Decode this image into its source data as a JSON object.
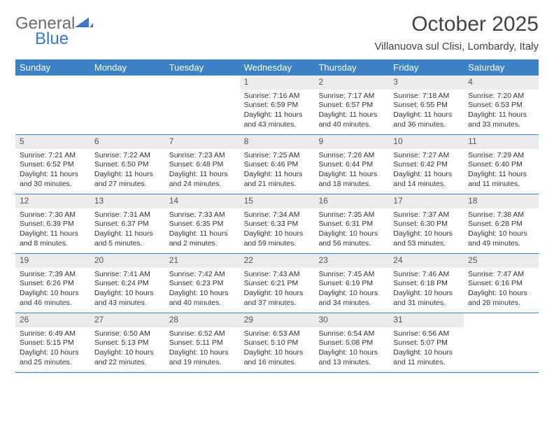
{
  "logo": {
    "text_gray": "General",
    "text_blue": "Blue"
  },
  "title": "October 2025",
  "location": "Villanuova sul Clisi, Lombardy, Italy",
  "colors": {
    "header_bg": "#3b82c4",
    "header_text": "#ffffff",
    "daynum_bg": "#ececec",
    "border": "#3b82c4",
    "logo_gray": "#6b6b6b",
    "logo_blue": "#3b7bbf",
    "title_color": "#424242"
  },
  "day_names": [
    "Sunday",
    "Monday",
    "Tuesday",
    "Wednesday",
    "Thursday",
    "Friday",
    "Saturday"
  ],
  "weeks": [
    [
      null,
      null,
      null,
      {
        "n": "1",
        "sr": "7:16 AM",
        "ss": "6:59 PM",
        "dl": "11 hours and 43 minutes."
      },
      {
        "n": "2",
        "sr": "7:17 AM",
        "ss": "6:57 PM",
        "dl": "11 hours and 40 minutes."
      },
      {
        "n": "3",
        "sr": "7:18 AM",
        "ss": "6:55 PM",
        "dl": "11 hours and 36 minutes."
      },
      {
        "n": "4",
        "sr": "7:20 AM",
        "ss": "6:53 PM",
        "dl": "11 hours and 33 minutes."
      }
    ],
    [
      {
        "n": "5",
        "sr": "7:21 AM",
        "ss": "6:52 PM",
        "dl": "11 hours and 30 minutes."
      },
      {
        "n": "6",
        "sr": "7:22 AM",
        "ss": "6:50 PM",
        "dl": "11 hours and 27 minutes."
      },
      {
        "n": "7",
        "sr": "7:23 AM",
        "ss": "6:48 PM",
        "dl": "11 hours and 24 minutes."
      },
      {
        "n": "8",
        "sr": "7:25 AM",
        "ss": "6:46 PM",
        "dl": "11 hours and 21 minutes."
      },
      {
        "n": "9",
        "sr": "7:26 AM",
        "ss": "6:44 PM",
        "dl": "11 hours and 18 minutes."
      },
      {
        "n": "10",
        "sr": "7:27 AM",
        "ss": "6:42 PM",
        "dl": "11 hours and 14 minutes."
      },
      {
        "n": "11",
        "sr": "7:29 AM",
        "ss": "6:40 PM",
        "dl": "11 hours and 11 minutes."
      }
    ],
    [
      {
        "n": "12",
        "sr": "7:30 AM",
        "ss": "6:39 PM",
        "dl": "11 hours and 8 minutes."
      },
      {
        "n": "13",
        "sr": "7:31 AM",
        "ss": "6:37 PM",
        "dl": "11 hours and 5 minutes."
      },
      {
        "n": "14",
        "sr": "7:33 AM",
        "ss": "6:35 PM",
        "dl": "11 hours and 2 minutes."
      },
      {
        "n": "15",
        "sr": "7:34 AM",
        "ss": "6:33 PM",
        "dl": "10 hours and 59 minutes."
      },
      {
        "n": "16",
        "sr": "7:35 AM",
        "ss": "6:31 PM",
        "dl": "10 hours and 56 minutes."
      },
      {
        "n": "17",
        "sr": "7:37 AM",
        "ss": "6:30 PM",
        "dl": "10 hours and 53 minutes."
      },
      {
        "n": "18",
        "sr": "7:38 AM",
        "ss": "6:28 PM",
        "dl": "10 hours and 49 minutes."
      }
    ],
    [
      {
        "n": "19",
        "sr": "7:39 AM",
        "ss": "6:26 PM",
        "dl": "10 hours and 46 minutes."
      },
      {
        "n": "20",
        "sr": "7:41 AM",
        "ss": "6:24 PM",
        "dl": "10 hours and 43 minutes."
      },
      {
        "n": "21",
        "sr": "7:42 AM",
        "ss": "6:23 PM",
        "dl": "10 hours and 40 minutes."
      },
      {
        "n": "22",
        "sr": "7:43 AM",
        "ss": "6:21 PM",
        "dl": "10 hours and 37 minutes."
      },
      {
        "n": "23",
        "sr": "7:45 AM",
        "ss": "6:19 PM",
        "dl": "10 hours and 34 minutes."
      },
      {
        "n": "24",
        "sr": "7:46 AM",
        "ss": "6:18 PM",
        "dl": "10 hours and 31 minutes."
      },
      {
        "n": "25",
        "sr": "7:47 AM",
        "ss": "6:16 PM",
        "dl": "10 hours and 28 minutes."
      }
    ],
    [
      {
        "n": "26",
        "sr": "6:49 AM",
        "ss": "5:15 PM",
        "dl": "10 hours and 25 minutes."
      },
      {
        "n": "27",
        "sr": "6:50 AM",
        "ss": "5:13 PM",
        "dl": "10 hours and 22 minutes."
      },
      {
        "n": "28",
        "sr": "6:52 AM",
        "ss": "5:11 PM",
        "dl": "10 hours and 19 minutes."
      },
      {
        "n": "29",
        "sr": "6:53 AM",
        "ss": "5:10 PM",
        "dl": "10 hours and 16 minutes."
      },
      {
        "n": "30",
        "sr": "6:54 AM",
        "ss": "5:08 PM",
        "dl": "10 hours and 13 minutes."
      },
      {
        "n": "31",
        "sr": "6:56 AM",
        "ss": "5:07 PM",
        "dl": "10 hours and 11 minutes."
      },
      null
    ]
  ],
  "labels": {
    "sunrise": "Sunrise:",
    "sunset": "Sunset:",
    "daylight": "Daylight:"
  }
}
